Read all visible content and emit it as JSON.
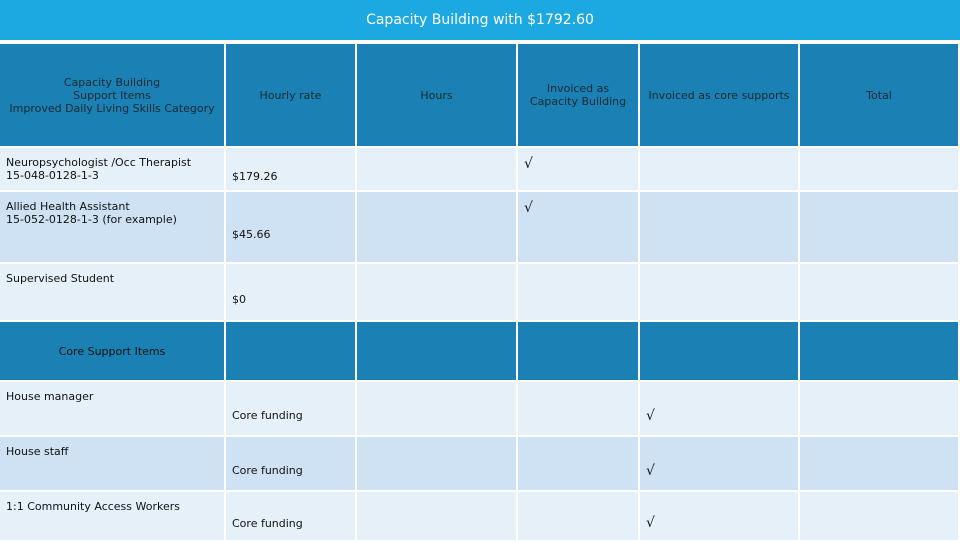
{
  "title": "Capacity Building with $1792.60",
  "table": {
    "header": [
      [
        "Capacity Building",
        "Support Items",
        "Improved Daily Living Skills Category"
      ],
      "Hourly rate",
      "Hours",
      "Invoiced as Capacity Building",
      "Invoiced as core supports",
      "Total"
    ],
    "rows": [
      {
        "item": [
          "Neuropsychologist /Occ Therapist",
          "15-048-0128-1-3"
        ],
        "rate": "$179.26",
        "capacity": "√"
      },
      {
        "item": [
          "Allied Health Assistant",
          "15-052-0128-1-3 (for example)"
        ],
        "rate": "$45.66",
        "capacity": "√"
      },
      {
        "item": [
          "Supervised Student"
        ],
        "rate": "$0"
      },
      {
        "section": "Core Support Items"
      },
      {
        "item": [
          "House manager"
        ],
        "rate": "Core funding",
        "core": "√"
      },
      {
        "item": [
          "House staff"
        ],
        "rate": "Core funding",
        "core": "√"
      },
      {
        "item": [
          "1:1 Community Access Workers"
        ],
        "rate": "Core funding",
        "core": "√"
      }
    ]
  }
}
